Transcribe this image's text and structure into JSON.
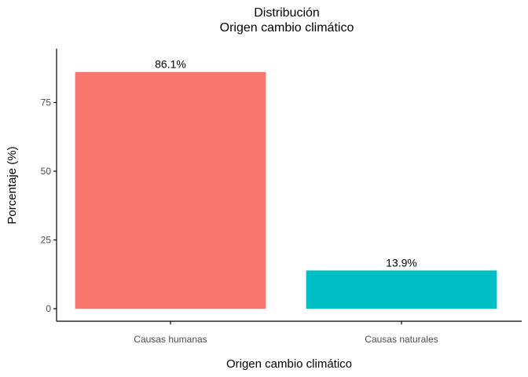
{
  "chart_data": {
    "type": "bar",
    "title": "Distribución",
    "subtitle": "Origen cambio climático",
    "xlabel": "Origen cambio climático",
    "ylabel": "Porcentaje (%)",
    "categories": [
      "Causas humanas",
      "Causas naturales"
    ],
    "values": [
      86.1,
      13.9
    ],
    "data_labels": [
      "86.1%",
      "13.9%"
    ],
    "colors": [
      "#F8766D",
      "#00BFC4"
    ],
    "ylim": [
      0,
      93
    ],
    "yticks": [
      0,
      25,
      50,
      75
    ],
    "grid": false,
    "legend": "none"
  }
}
